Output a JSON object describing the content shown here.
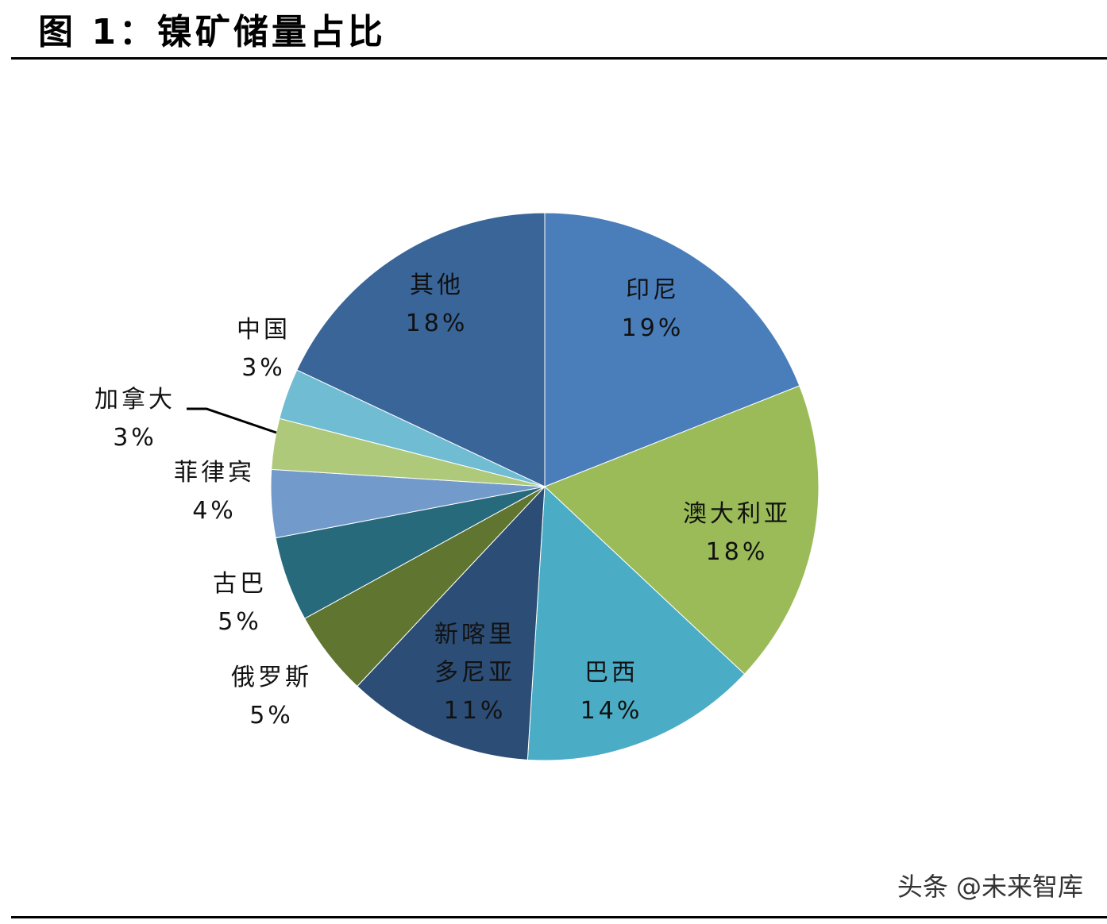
{
  "chart_data": {
    "type": "pie",
    "title": "图 1：镍矿储量占比",
    "categories": [
      "印尼",
      "澳大利亚",
      "巴西",
      "新喀里多尼亚",
      "俄罗斯",
      "古巴",
      "菲律宾",
      "加拿大",
      "中国",
      "其他"
    ],
    "values": [
      19,
      18,
      14,
      11,
      5,
      5,
      4,
      3,
      3,
      18
    ],
    "value_labels": [
      "19%",
      "18%",
      "14%",
      "11%",
      "5%",
      "5%",
      "4%",
      "3%",
      "3%",
      "18%"
    ],
    "colors": [
      "#4a7ebb",
      "#9bbb59",
      "#4bacc6",
      "#2c4d75",
      "#5f7530",
      "#276a7c",
      "#729aca",
      "#afc97a",
      "#6fbcd3",
      "#3a6599"
    ],
    "watermark": "头条 @未来智库"
  }
}
